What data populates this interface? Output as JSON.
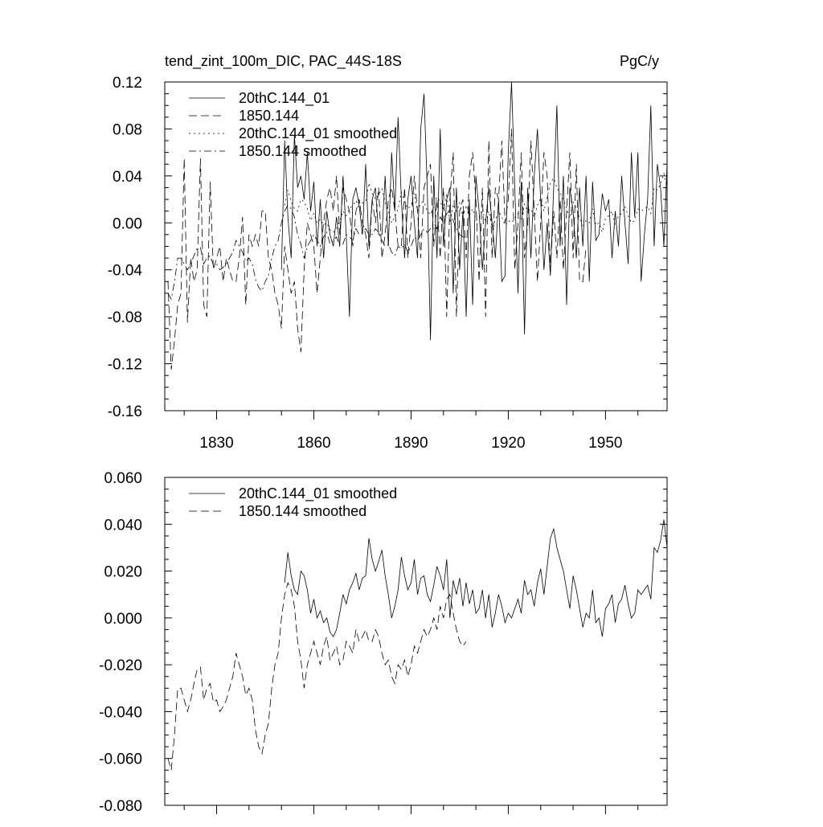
{
  "chart_data": [
    {
      "type": "line",
      "title": "tend_zint_100m_DIC, PAC_44S-18S",
      "units": "PgC/y",
      "xlim": [
        1814,
        1969
      ],
      "ylim": [
        -0.16,
        0.12
      ],
      "x_ticks": [
        1830,
        1860,
        1890,
        1920,
        1950
      ],
      "y_ticks": [
        "-0.16",
        "-0.12",
        "-0.08",
        "-0.04",
        "0.00",
        "0.04",
        "0.08",
        "0.12"
      ],
      "legend_position": "top-left",
      "series": [
        {
          "name": "20thC.144_01",
          "style": "solid",
          "x": [
            1850,
            1851,
            1852,
            1853,
            1854,
            1855,
            1856,
            1857,
            1858,
            1859,
            1860,
            1861,
            1862,
            1863,
            1864,
            1865,
            1866,
            1867,
            1868,
            1869,
            1870,
            1871,
            1872,
            1873,
            1874,
            1875,
            1876,
            1877,
            1878,
            1879,
            1880,
            1881,
            1882,
            1883,
            1884,
            1885,
            1886,
            1887,
            1888,
            1889,
            1890,
            1891,
            1892,
            1893,
            1894,
            1895,
            1896,
            1897,
            1898,
            1899,
            1900,
            1901,
            1902,
            1903,
            1904,
            1905,
            1906,
            1907,
            1908,
            1909,
            1910,
            1911,
            1912,
            1913,
            1914,
            1915,
            1916,
            1917,
            1918,
            1919,
            1920,
            1921,
            1922,
            1923,
            1924,
            1925,
            1926,
            1927,
            1928,
            1929,
            1930,
            1931,
            1932,
            1933,
            1934,
            1935,
            1936,
            1937,
            1938,
            1939,
            1940,
            1941,
            1942,
            1943,
            1944,
            1945,
            1946,
            1947,
            1948,
            1949,
            1950,
            1951,
            1952,
            1953,
            1954,
            1955,
            1956,
            1957,
            1958,
            1959,
            1960,
            1961,
            1962,
            1963,
            1964,
            1965,
            1966,
            1967,
            1968,
            1969
          ],
          "y": [
            -0.04,
            0.07,
            0.005,
            -0.03,
            0.075,
            0.03,
            0.04,
            0.02,
            0.06,
            0.01,
            0.035,
            -0.02,
            0.02,
            -0.03,
            0.01,
            -0.01,
            -0.02,
            0.005,
            -0.02,
            0.04,
            -0.01,
            -0.08,
            0.02,
            0.03,
            0.015,
            -0.01,
            0.05,
            -0.02,
            0.02,
            0.03,
            -0.01,
            -0.01,
            0.04,
            -0.02,
            0.06,
            0.01,
            0.09,
            0.02,
            -0.03,
            0.02,
            0.04,
            0.0,
            -0.03,
            0.08,
            0.11,
            0.03,
            -0.1,
            0.04,
            -0.03,
            0.08,
            -0.02,
            0.02,
            0.03,
            -0.06,
            0.03,
            -0.04,
            0.01,
            -0.08,
            0.02,
            -0.07,
            0.04,
            0.01,
            -0.04,
            0.0,
            0.03,
            0.0,
            -0.03,
            0.02,
            -0.05,
            -0.045,
            0.06,
            0.12,
            0.03,
            -0.06,
            0.035,
            -0.095,
            0.03,
            -0.03,
            0.04,
            0.08,
            0.02,
            -0.04,
            0.0,
            -0.045,
            0.03,
            0.1,
            -0.02,
            0.04,
            -0.07,
            0.03,
            0.01,
            -0.03,
            0.03,
            -0.02,
            0.04,
            -0.05,
            0.035,
            -0.015,
            -0.01,
            0.025,
            0.01,
            0.02,
            -0.03,
            0.01,
            -0.02,
            0.04,
            0.0,
            -0.035,
            0.06,
            0.005,
            0.06,
            -0.05,
            -0.01,
            0.02,
            0.1,
            -0.02,
            0.05,
            0.03,
            -0.02,
            0.05
          ],
          "x_end": 1969
        },
        {
          "name": "1850.144",
          "style": "dashed",
          "x_start": 1815,
          "y": [
            -0.05,
            -0.125,
            -0.1,
            -0.07,
            -0.06,
            0.055,
            -0.085,
            -0.03,
            -0.05,
            -0.04,
            0.055,
            -0.07,
            -0.08,
            0.035,
            -0.04,
            -0.03,
            -0.02,
            -0.05,
            -0.03,
            -0.04,
            -0.05,
            -0.05,
            -0.03,
            0.005,
            -0.07,
            -0.01,
            -0.02,
            -0.01,
            -0.02,
            0.01,
            0.01,
            -0.03,
            -0.04,
            -0.06,
            -0.07,
            -0.09,
            -0.02,
            -0.04,
            -0.06,
            -0.05,
            -0.09,
            -0.11,
            -0.04,
            0.0,
            -0.01,
            -0.02,
            -0.06,
            -0.03,
            0.0,
            0.02,
            0.03,
            0.01,
            0.04,
            -0.01,
            0.03,
            0.02,
            0.01,
            -0.02,
            0.01,
            0.02,
            0.0,
            -0.01,
            -0.03,
            0.02,
            0.0,
            0.03,
            -0.03,
            -0.01,
            0.02,
            0.03,
            0.01,
            -0.02,
            -0.02,
            0.03,
            -0.03,
            0.0,
            0.04,
            0.01,
            -0.03,
            0.03,
            0.04,
            0.05,
            -0.02,
            0.02,
            -0.03,
            0.03,
            -0.08,
            0.02,
            0.06,
            -0.08,
            0.01,
            0.02,
            -0.03,
            0.04,
            0.06,
            0.02,
            -0.05,
            0.03,
            -0.08,
            0.07,
            -0.03,
            0.03,
            0.02,
            0.07,
            0.0,
            0.02,
            0.08,
            -0.04,
            0.0,
            0.06,
            -0.03,
            0.0,
            0.07,
            0.01,
            -0.05,
            0.0,
            0.06,
            0.04,
            -0.04,
            0.01,
            -0.03,
            0.02,
            -0.04,
            0.01,
            0.06,
            -0.03,
            0.05,
            -0.05,
            -0.05,
            -0.02
          ]
        },
        {
          "name": "20thC.144_01 smoothed",
          "style": "dotted",
          "x_start": 1851,
          "y": [
            0.015,
            0.028,
            0.018,
            0.012,
            0.01,
            0.02,
            0.018,
            0.012,
            0.002,
            0.008,
            0.0,
            0.003,
            -0.002,
            0.0,
            -0.006,
            -0.008,
            -0.005,
            0.002,
            0.01,
            0.006,
            0.012,
            0.015,
            0.019,
            0.012,
            0.017,
            0.018,
            0.034,
            0.025,
            0.02,
            0.024,
            0.029,
            0.018,
            0.01,
            0.0,
            0.005,
            0.012,
            0.026,
            0.018,
            0.012,
            0.015,
            0.025,
            0.01,
            0.017,
            0.018,
            0.01,
            0.007,
            0.014,
            0.022,
            0.018,
            0.012,
            0.025,
            0.0,
            0.016,
            0.01,
            0.017,
            0.005,
            0.015,
            0.006,
            0.012,
            0.002,
            0.004,
            0.012,
            0.0,
            0.01,
            -0.004,
            0.002,
            0.01,
            0.005,
            -0.002,
            0.002,
            0.0,
            0.004,
            0.008,
            0.002,
            0.016,
            0.01,
            0.012,
            0.005,
            0.015,
            0.021,
            0.01,
            0.022,
            0.034,
            0.038,
            0.03,
            0.025,
            0.02,
            0.012,
            0.004,
            0.018,
            0.012,
            0.004,
            -0.004,
            0.002,
            0.0,
            0.012,
            -0.002,
            0.0,
            -0.008,
            0.004,
            0.006,
            0.01,
            -0.002,
            0.006,
            0.008,
            0.014,
            0.006,
            0.0,
            0.002,
            0.012,
            0.01,
            0.012,
            0.014,
            0.008,
            0.03,
            0.028,
            0.033,
            0.042,
            0.03
          ]
        },
        {
          "name": "1850.144 smoothed",
          "style": "dashdot",
          "x_start": 1815,
          "y": [
            -0.06,
            -0.065,
            -0.05,
            -0.03,
            -0.03,
            -0.035,
            -0.04,
            -0.035,
            -0.028,
            -0.022,
            -0.021,
            -0.035,
            -0.03,
            -0.028,
            -0.036,
            -0.035,
            -0.04,
            -0.038,
            -0.035,
            -0.03,
            -0.025,
            -0.015,
            -0.02,
            -0.025,
            -0.033,
            -0.03,
            -0.035,
            -0.048,
            -0.055,
            -0.058,
            -0.05,
            -0.045,
            -0.03,
            -0.02,
            -0.015,
            0.0,
            0.01,
            0.015,
            0.012,
            0.005,
            -0.01,
            -0.018,
            -0.03,
            -0.02,
            -0.015,
            -0.01,
            -0.015,
            -0.02,
            -0.012,
            -0.008,
            -0.018,
            -0.015,
            -0.012,
            -0.02,
            -0.018,
            -0.01,
            -0.012,
            -0.015,
            -0.005,
            -0.01,
            -0.008,
            -0.005,
            -0.01,
            -0.01,
            -0.005,
            -0.008,
            -0.015,
            -0.02,
            -0.018,
            -0.025,
            -0.028,
            -0.02,
            -0.022,
            -0.018,
            -0.025,
            -0.02,
            -0.012,
            -0.015,
            -0.01,
            -0.005,
            -0.008,
            -0.005,
            0.0,
            -0.005,
            0.005,
            0.0,
            0.008,
            0.01,
            0.002,
            -0.005,
            -0.01,
            -0.012,
            -0.01
          ]
        }
      ]
    },
    {
      "type": "line",
      "title": "",
      "xlim": [
        1814,
        1969
      ],
      "ylim": [
        -0.08,
        0.06
      ],
      "y_ticks": [
        "-0.080",
        "-0.060",
        "-0.040",
        "-0.020",
        "0.000",
        "0.020",
        "0.040",
        "0.060"
      ],
      "legend_position": "top-left",
      "series": [
        {
          "name": "20thC.144_01 smoothed",
          "style": "solid",
          "ref": 2
        },
        {
          "name": "1850.144 smoothed",
          "style": "dashed",
          "ref": 3
        }
      ]
    }
  ]
}
